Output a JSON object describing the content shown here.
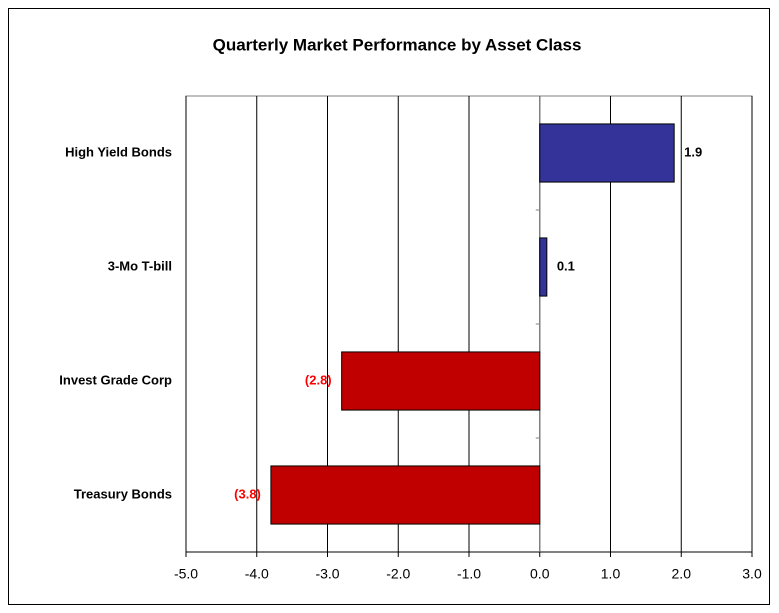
{
  "chart_data": {
    "type": "hbar",
    "title": "Quarterly Market Performance by Asset Class",
    "categories": [
      "High Yield Bonds",
      "3-Mo T-bill",
      "Invest Grade Corp",
      "Treasury Bonds"
    ],
    "values": [
      1.9,
      0.1,
      -2.8,
      -3.8
    ],
    "value_labels": [
      "1.9",
      "0.1",
      "(2.8)",
      "(3.8)"
    ],
    "positive_color": "#333399",
    "negative_color": "#c00000",
    "negative_label_color": "#ff0000",
    "xlim": [
      -5,
      3
    ],
    "xticks": [
      {
        "value": -5,
        "label": "-5.0"
      },
      {
        "value": -4,
        "label": "-4.0"
      },
      {
        "value": -3,
        "label": "-3.0"
      },
      {
        "value": -2,
        "label": "-2.0"
      },
      {
        "value": -1,
        "label": "-1.0"
      },
      {
        "value": 0,
        "label": "0.0"
      },
      {
        "value": 1,
        "label": "1.0"
      },
      {
        "value": 2,
        "label": "2.0"
      },
      {
        "value": 3,
        "label": "3.0"
      }
    ],
    "grid": true
  }
}
